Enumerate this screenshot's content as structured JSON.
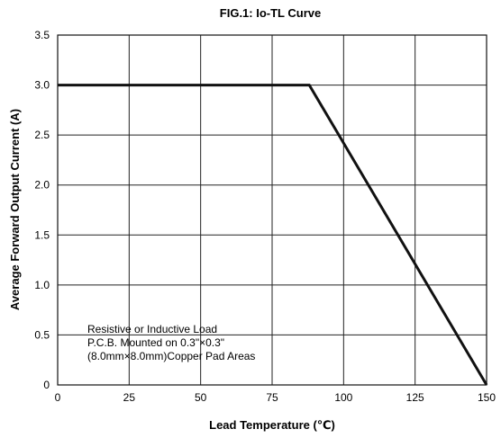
{
  "chart_data": {
    "type": "line",
    "title": "FIG.1: Io-TL Curve",
    "xlabel": "Lead Temperature (℃)",
    "ylabel": "Average Forward Output Current (A)",
    "xlim": [
      0,
      150
    ],
    "ylim": [
      0,
      3.5
    ],
    "xticks": [
      0,
      25,
      50,
      75,
      100,
      125,
      150
    ],
    "yticks": [
      0,
      0.5,
      1.0,
      1.5,
      2.0,
      2.5,
      3.0,
      3.5
    ],
    "xtick_labels": [
      "0",
      "25",
      "50",
      "75",
      "100",
      "125",
      "150"
    ],
    "ytick_labels": [
      "0",
      "0.5",
      "1.0",
      "1.5",
      "2.0",
      "2.5",
      "3.0",
      "3.5"
    ],
    "grid": true,
    "series": [
      {
        "x": [
          0,
          88,
          150
        ],
        "y": [
          3.0,
          3.0,
          0
        ]
      }
    ],
    "annotation_lines": [
      "Resistive or Inductive Load",
      "P.C.B. Mounted on 0.3\"×0.3\"",
      "(8.0mm×8.0mm)Copper Pad Areas"
    ]
  }
}
